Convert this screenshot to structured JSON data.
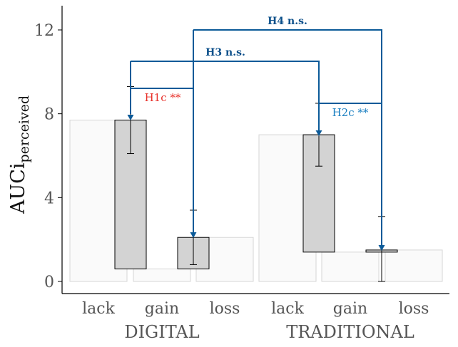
{
  "chart_data": {
    "type": "bar",
    "ylabel": "AUCi",
    "ylabel_subscript": "perceived",
    "ylim": [
      -0.6,
      13
    ],
    "yticks": [
      0,
      4,
      8,
      12
    ],
    "groups": [
      "DIGITAL",
      "TRADITIONAL"
    ],
    "categories": [
      "lack",
      "gain",
      "loss"
    ],
    "background_bars": [
      {
        "group": "DIGITAL",
        "category": "lack",
        "value": 7.7
      },
      {
        "group": "DIGITAL",
        "category": "gain",
        "value": 0.6
      },
      {
        "group": "DIGITAL",
        "category": "loss",
        "value": 2.1
      },
      {
        "group": "TRADITIONAL",
        "category": "lack",
        "value": 7.0
      },
      {
        "group": "TRADITIONAL",
        "category": "gain",
        "value": 1.4
      },
      {
        "group": "TRADITIONAL",
        "category": "loss",
        "value": 1.5
      }
    ],
    "change_bars": [
      {
        "group": "DIGITAL",
        "between": "lack-gain",
        "from": 0.6,
        "to": 7.7,
        "err_low": 6.1,
        "err_high": 9.3
      },
      {
        "group": "DIGITAL",
        "between": "gain-loss",
        "from": 0.6,
        "to": 2.1,
        "err_low": 0.8,
        "err_high": 3.4
      },
      {
        "group": "TRADITIONAL",
        "between": "lack-gain",
        "from": 1.4,
        "to": 7.0,
        "err_low": 5.5,
        "err_high": 8.5
      },
      {
        "group": "TRADITIONAL",
        "between": "gain-loss",
        "from": 1.4,
        "to": 1.5,
        "err_low": 0.0,
        "err_high": 3.1
      }
    ],
    "annotations": [
      {
        "label": "H1c **",
        "color": "#e8312a"
      },
      {
        "label": "H2c **",
        "color": "#1a7fc1"
      },
      {
        "label": "H3 n.s.",
        "color": "#0b4f8a"
      },
      {
        "label": "H4 n.s.",
        "color": "#0b4f8a"
      }
    ],
    "colors": {
      "bar_fill": "#d3d3d3",
      "background_fill": "#fafafa",
      "background_stroke": "#d6d6d6",
      "bracket": "#0b5a98",
      "axis": "#000000"
    }
  }
}
